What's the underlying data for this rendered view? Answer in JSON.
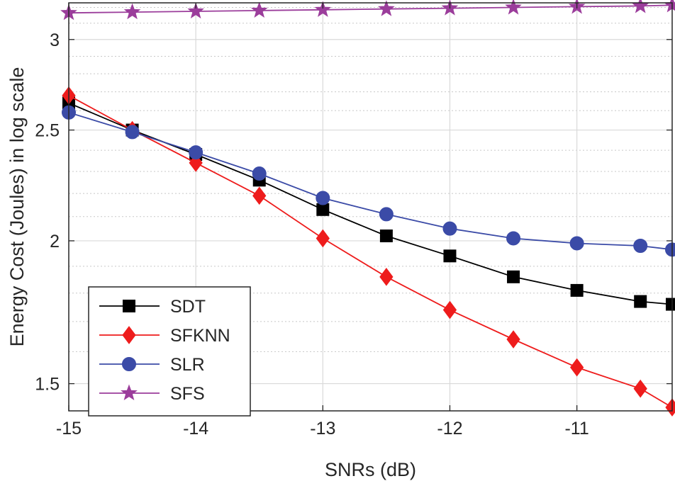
{
  "chart_data": {
    "type": "line",
    "title": "",
    "xlabel": "SNRs (dB)",
    "ylabel": "Energy Cost (Joules) in log scale",
    "yscale": "log",
    "grid": true,
    "xlim": [
      -15,
      -10.25
    ],
    "ylim": [
      1.42,
      3.23
    ],
    "xticks": [
      -15,
      -14,
      -13,
      -12,
      -11
    ],
    "xtick_labels": [
      "-15",
      "-14",
      "-13",
      "-12",
      "-11"
    ],
    "yticks": [
      1.5,
      2,
      2.5,
      3
    ],
    "ytick_labels": [
      "1.5",
      "2",
      "2.5",
      "3"
    ],
    "legend_position": "bottom-left",
    "x": [
      -15,
      -14.5,
      -14,
      -13.5,
      -13,
      -12.5,
      -12,
      -11.5,
      -11,
      -10.5,
      -10.25
    ],
    "series": [
      {
        "name": "SDT",
        "color": "#000000",
        "marker": "square",
        "values": [
          2.64,
          2.5,
          2.38,
          2.26,
          2.13,
          2.02,
          1.94,
          1.86,
          1.81,
          1.77,
          1.76
        ]
      },
      {
        "name": "SFKNN",
        "color": "#ee1c1c",
        "marker": "diamond",
        "values": [
          2.68,
          2.5,
          2.34,
          2.19,
          2.01,
          1.86,
          1.74,
          1.64,
          1.55,
          1.485,
          1.43
        ]
      },
      {
        "name": "SLR",
        "color": "#3b4ba7",
        "marker": "circle",
        "values": [
          2.59,
          2.49,
          2.39,
          2.29,
          2.18,
          2.11,
          2.05,
          2.01,
          1.99,
          1.98,
          1.965
        ]
      },
      {
        "name": "SFS",
        "color": "#9b3d9b",
        "marker": "star",
        "values": [
          3.165,
          3.17,
          3.175,
          3.18,
          3.185,
          3.19,
          3.195,
          3.2,
          3.205,
          3.21,
          3.215
        ]
      }
    ]
  }
}
